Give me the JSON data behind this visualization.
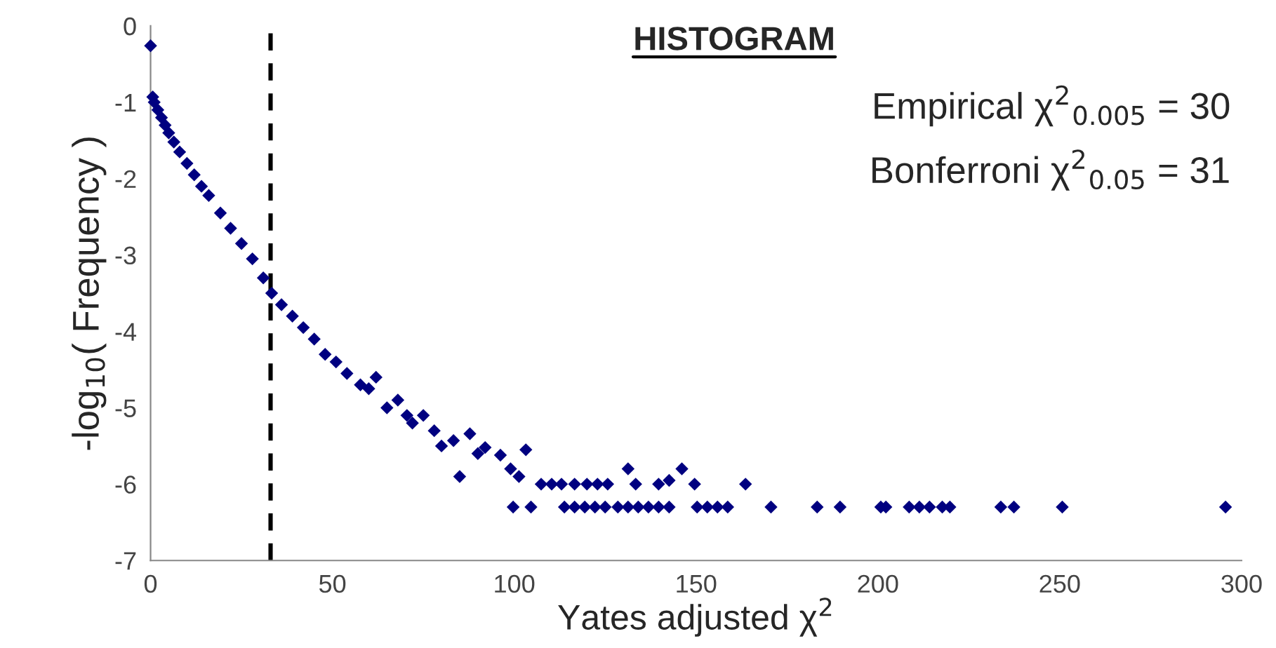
{
  "chart_data": {
    "type": "scatter",
    "title": "HISTOGRAM",
    "xlabel": "Yates adjusted χ$^{2}$",
    "ylabel": "-log$_{10}$( Frequency )",
    "annotations": [
      "Empirical χ$^{2}$$_{0.005}$ = 30",
      "Bonferroni χ$^{2}$$_{0.05}$ = 31"
    ],
    "xlim": [
      0,
      300
    ],
    "ylim": [
      -7,
      0
    ],
    "xticks": [
      0,
      50,
      100,
      150,
      200,
      250,
      300
    ],
    "yticks": [
      0,
      -1,
      -2,
      -3,
      -4,
      -5,
      -6,
      -7
    ],
    "grid": false,
    "marker": "diamond",
    "ref_lines": [
      {
        "axis": "x",
        "value": 33,
        "line_style": "dashed",
        "color": "#000000"
      }
    ],
    "series": [
      {
        "color": "#000080",
        "x": [
          0,
          0.6,
          1,
          2,
          3,
          4,
          5,
          6.4,
          8,
          10,
          12,
          14,
          16,
          19.2,
          22,
          25,
          28,
          31,
          33.3,
          36,
          39,
          42,
          45,
          48,
          51,
          54,
          57.7,
          60,
          62,
          65,
          68,
          70.5,
          72,
          75,
          78,
          80,
          83.3,
          85,
          87.8,
          90,
          92,
          96.2,
          99,
          101.3,
          103.2,
          107.4,
          110.3,
          113,
          116.6,
          120,
          122.9,
          125.7,
          131.3,
          133.4,
          139.7,
          142.6,
          146.1,
          149.6,
          163.6,
          99.7,
          104.6,
          113.8,
          116.6,
          119.4,
          122.2,
          125,
          128.5,
          131.3,
          134.1,
          136.9,
          139.7,
          142.6,
          150.3,
          153.1,
          155.9,
          158.7,
          170.6,
          183.3,
          189.6,
          200.8,
          202.2,
          208.6,
          211.4,
          214.2,
          217.7,
          219.8,
          233.8,
          237.4,
          250.7,
          295.6
        ],
        "values": [
          -0.26,
          -0.93,
          -1.0,
          -1.1,
          -1.2,
          -1.3,
          -1.4,
          -1.52,
          -1.65,
          -1.8,
          -1.95,
          -2.1,
          -2.22,
          -2.45,
          -2.65,
          -2.85,
          -3.05,
          -3.3,
          -3.5,
          -3.65,
          -3.8,
          -3.95,
          -4.1,
          -4.3,
          -4.4,
          -4.55,
          -4.7,
          -4.75,
          -4.6,
          -5.0,
          -4.9,
          -5.1,
          -5.2,
          -5.1,
          -5.3,
          -5.5,
          -5.43,
          -5.9,
          -5.34,
          -5.6,
          -5.52,
          -5.62,
          -5.8,
          -5.9,
          -5.55,
          -6.0,
          -6.0,
          -6.0,
          -6.0,
          -6.0,
          -6.0,
          -6.0,
          -5.8,
          -6.0,
          -6.0,
          -5.95,
          -5.8,
          -6.0,
          -6.0,
          -6.3,
          -6.3,
          -6.3,
          -6.3,
          -6.3,
          -6.3,
          -6.3,
          -6.3,
          -6.3,
          -6.3,
          -6.3,
          -6.3,
          -6.3,
          -6.3,
          -6.3,
          -6.3,
          -6.3,
          -6.3,
          -6.3,
          -6.3,
          -6.3,
          -6.3,
          -6.3,
          -6.3,
          -6.3,
          -6.3,
          -6.3,
          -6.3,
          -6.3,
          -6.3,
          -6.3
        ]
      }
    ]
  }
}
